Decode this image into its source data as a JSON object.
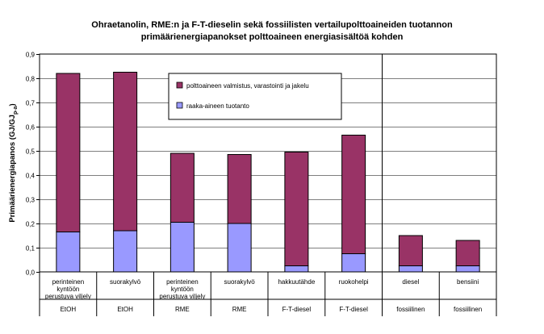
{
  "chart_data": {
    "type": "bar",
    "stacked": true,
    "title_line1": "Ohraetanolin, RME:n ja F-T-dieselin sekä fossiilisten vertailupolttoaineiden tuotannon",
    "title_line2": "primäärienergiapanokset polttoaineen energiasisältöä kohden",
    "ylabel_main": "Primäärienergiapanos (GJ/GJ",
    "ylabel_sub": "p-a",
    "ylabel_end": ")",
    "ylim": [
      0,
      0.9
    ],
    "yticks": [
      "0,0",
      "0,1",
      "0,2",
      "0,3",
      "0,4",
      "0,5",
      "0,6",
      "0,7",
      "0,8",
      "0,9"
    ],
    "grid": true,
    "legend_position": "top-center",
    "categories": [
      {
        "label_lines": [
          "perinteinen",
          "kyntöön",
          "perustuva viljely"
        ],
        "group": "EtOH"
      },
      {
        "label_lines": [
          "suorakylvö"
        ],
        "group": "EtOH"
      },
      {
        "label_lines": [
          "perinteinen",
          "kyntöön",
          "perustuva viljely"
        ],
        "group": "RME"
      },
      {
        "label_lines": [
          "suorakylvö"
        ],
        "group": "RME"
      },
      {
        "label_lines": [
          "hakkuutähde"
        ],
        "group": "F-T-diesel"
      },
      {
        "label_lines": [
          "ruokohelpi"
        ],
        "group": "F-T-diesel"
      },
      {
        "label_lines": [
          "diesel"
        ],
        "group": "fossiilinen"
      },
      {
        "label_lines": [
          "bensiini"
        ],
        "group": "fossiilinen"
      }
    ],
    "series": [
      {
        "name": "raaka-aineen tuotanto",
        "color": "#9999ff",
        "values": [
          0.165,
          0.17,
          0.205,
          0.2,
          0.025,
          0.075,
          0.025,
          0.025
        ]
      },
      {
        "name": "polttoaineen valmistus, varastointi ja jakelu",
        "color": "#993366",
        "values": [
          0.655,
          0.655,
          0.285,
          0.285,
          0.47,
          0.49,
          0.125,
          0.105
        ]
      }
    ],
    "legend_order": [
      1,
      0
    ]
  }
}
